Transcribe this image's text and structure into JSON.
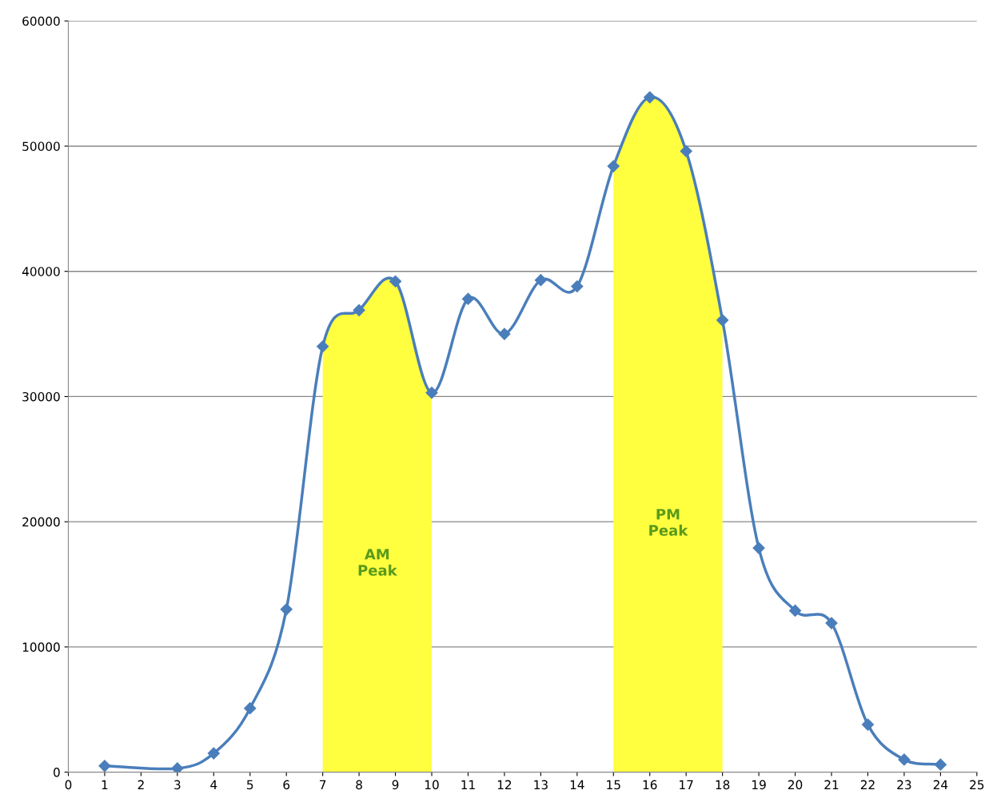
{
  "chart_data": {
    "type": "line",
    "x": [
      1,
      3,
      4,
      5,
      6,
      7,
      8,
      9,
      10,
      11,
      12,
      13,
      14,
      15,
      16,
      17,
      18,
      19,
      20,
      21,
      22,
      23,
      24
    ],
    "series": [
      {
        "color": "#4a7ebb",
        "values": [
          500,
          300,
          1500,
          5100,
          13000,
          34000,
          36900,
          39200,
          30300,
          37800,
          35000,
          39300,
          38800,
          48400,
          53900,
          49600,
          36100,
          17900,
          12900,
          11900,
          3800,
          1000,
          600
        ]
      }
    ],
    "marker": "diamond",
    "line_style": "solid",
    "xlim": [
      0,
      25
    ],
    "xticks": [
      0,
      1,
      2,
      3,
      4,
      5,
      6,
      7,
      8,
      9,
      10,
      11,
      12,
      13,
      14,
      15,
      16,
      17,
      18,
      19,
      20,
      21,
      22,
      23,
      24,
      25
    ],
    "ylim": [
      0,
      60000
    ],
    "yticks": [
      0,
      10000,
      20000,
      30000,
      40000,
      50000,
      60000
    ],
    "grid": "y",
    "bands": [
      {
        "axis": "x",
        "from": 7,
        "to": 10,
        "label": "AM\nPeak",
        "color": "#ffff40"
      },
      {
        "axis": "x",
        "from": 15,
        "to": 18,
        "label": "PM\nPeak",
        "color": "#ffff40"
      }
    ]
  }
}
